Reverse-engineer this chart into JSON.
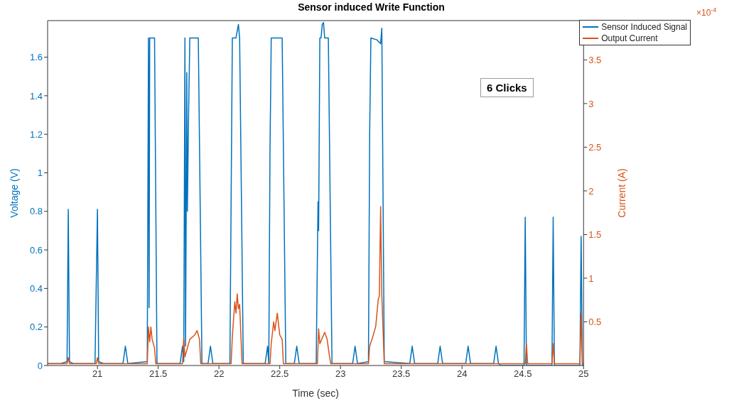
{
  "chart_data": {
    "type": "line",
    "title": "Sensor induced Write Function",
    "xlabel": "Time (sec)",
    "ylabel": "Voltage (V)",
    "y2label": "Current (A)",
    "annotations": [
      "6 Clicks",
      "×10$^{-4}$"
    ],
    "xlim": [
      20.59,
      25
    ],
    "xticks": [
      21,
      21.5,
      22,
      22.5,
      23,
      23.5,
      24,
      24.5,
      25
    ],
    "ylim": [
      0,
      1.79
    ],
    "yticks": [
      0,
      0.2,
      0.4,
      0.6,
      0.8,
      1,
      1.2,
      1.4,
      1.6
    ],
    "y2lim": [
      0,
      3.95
    ],
    "y2ticks": [
      0.5,
      1,
      1.5,
      2,
      2.5,
      3,
      3.5
    ],
    "grid": false,
    "legend": "top right",
    "marker": "none",
    "line_style": "solid",
    "series": [
      {
        "name": "Sensor Induced Signal",
        "color": "#0072bd",
        "x": [
          20.59,
          20.7,
          20.75,
          20.76,
          20.77,
          20.8,
          20.98,
          21.0,
          21.01,
          21.05,
          21.21,
          21.23,
          21.25,
          21.41,
          21.42,
          21.425,
          21.43,
          21.44,
          21.47,
          21.49,
          21.68,
          21.7,
          21.71,
          21.72,
          21.725,
          21.73,
          21.735,
          21.74,
          21.75,
          21.76,
          21.77,
          21.78,
          21.83,
          21.86,
          21.91,
          21.93,
          21.95,
          22.09,
          22.11,
          22.14,
          22.16,
          22.17,
          22.2,
          22.38,
          22.4,
          22.41,
          22.42,
          22.425,
          22.43,
          22.45,
          22.52,
          22.55,
          22.62,
          22.64,
          22.66,
          22.8,
          22.815,
          22.82,
          22.83,
          22.84,
          22.85,
          22.86,
          22.87,
          22.9,
          22.93,
          23.1,
          23.12,
          23.14,
          23.23,
          23.24,
          23.25,
          23.3,
          23.33,
          23.34,
          23.36,
          23.57,
          23.59,
          23.61,
          23.8,
          23.82,
          23.84,
          24.03,
          24.05,
          24.07,
          24.26,
          24.28,
          24.3,
          24.32,
          24.51,
          24.52,
          24.53,
          24.54,
          24.74,
          24.75,
          24.76,
          24.97,
          24.98,
          24.99,
          25
        ],
        "values": [
          0.01,
          0.01,
          0.02,
          0.81,
          0.02,
          0.01,
          0.01,
          0.81,
          0.02,
          0.01,
          0.01,
          0.1,
          0.01,
          0.02,
          1.7,
          0.3,
          1.7,
          1.7,
          1.7,
          0.01,
          0.01,
          0.1,
          0.02,
          1.7,
          0.1,
          0.75,
          1.52,
          0.8,
          1.3,
          1.7,
          1.7,
          1.7,
          1.7,
          0.01,
          0.01,
          0.1,
          0.01,
          0.01,
          1.7,
          1.7,
          1.77,
          1.7,
          0.01,
          0.01,
          0.1,
          0.01,
          1.13,
          1.4,
          1.7,
          1.7,
          1.7,
          0.01,
          0.01,
          0.1,
          0.01,
          0.01,
          0.85,
          0.7,
          1.7,
          1.7,
          1.77,
          1.78,
          1.7,
          1.7,
          0.01,
          0.01,
          0.1,
          0.01,
          0.02,
          1.2,
          1.7,
          1.69,
          1.67,
          1.75,
          0.02,
          0.01,
          0.1,
          0.01,
          0.01,
          0.1,
          0.01,
          0.01,
          0.1,
          0.01,
          0.01,
          0.1,
          0.01,
          0.0,
          0.0,
          0.77,
          0.0,
          0.0,
          0.0,
          0.77,
          0.0,
          0.0,
          0.67,
          0.0,
          0.0
        ]
      },
      {
        "name": "Output Current",
        "color": "#d95319",
        "axis": "y2",
        "x": [
          20.59,
          20.75,
          20.76,
          20.77,
          20.99,
          21.0,
          21.01,
          21.41,
          21.42,
          21.43,
          21.44,
          21.45,
          21.47,
          21.48,
          21.7,
          21.71,
          21.72,
          21.73,
          21.76,
          21.8,
          21.82,
          21.84,
          21.85,
          22.1,
          22.11,
          22.13,
          22.14,
          22.15,
          22.16,
          22.17,
          22.19,
          22.42,
          22.43,
          22.45,
          22.46,
          22.48,
          22.5,
          22.52,
          22.53,
          22.81,
          22.82,
          22.83,
          22.87,
          22.89,
          22.91,
          22.92,
          23.23,
          23.24,
          23.27,
          23.29,
          23.31,
          23.32,
          23.33,
          23.34,
          23.36,
          24.52,
          24.53,
          24.54,
          24.74,
          24.75,
          24.76,
          24.97,
          24.98,
          24.99,
          25
        ],
        "values": [
          0.02,
          0.02,
          0.09,
          0.02,
          0.02,
          0.09,
          0.02,
          0.02,
          0.44,
          0.27,
          0.44,
          0.3,
          0.2,
          0.02,
          0.02,
          0.31,
          0.1,
          0.15,
          0.3,
          0.35,
          0.4,
          0.3,
          0.02,
          0.02,
          0.33,
          0.73,
          0.6,
          0.82,
          0.65,
          0.7,
          0.02,
          0.02,
          0.25,
          0.5,
          0.4,
          0.6,
          0.35,
          0.3,
          0.02,
          0.02,
          0.42,
          0.25,
          0.38,
          0.3,
          0.1,
          0.02,
          0.02,
          0.22,
          0.35,
          0.45,
          0.75,
          0.8,
          1.82,
          0.8,
          0.02,
          0.02,
          0.25,
          0.02,
          0.02,
          0.25,
          0.02,
          0.02,
          0.6,
          0.02,
          0.02
        ]
      }
    ]
  }
}
